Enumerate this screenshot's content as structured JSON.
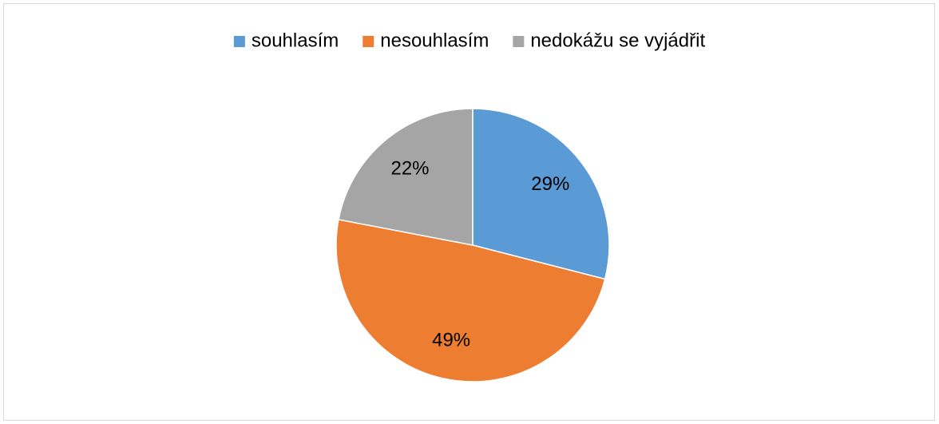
{
  "chart_data": {
    "type": "pie",
    "categories": [
      "souhlasím",
      "nesouhlasím",
      "nedokážu se vyjádřit"
    ],
    "values": [
      29,
      49,
      22
    ],
    "value_labels": [
      "29%",
      "49%",
      "22%"
    ],
    "colors": [
      "#5b9bd5",
      "#ed7d31",
      "#a5a5a5"
    ],
    "legend": "top"
  }
}
